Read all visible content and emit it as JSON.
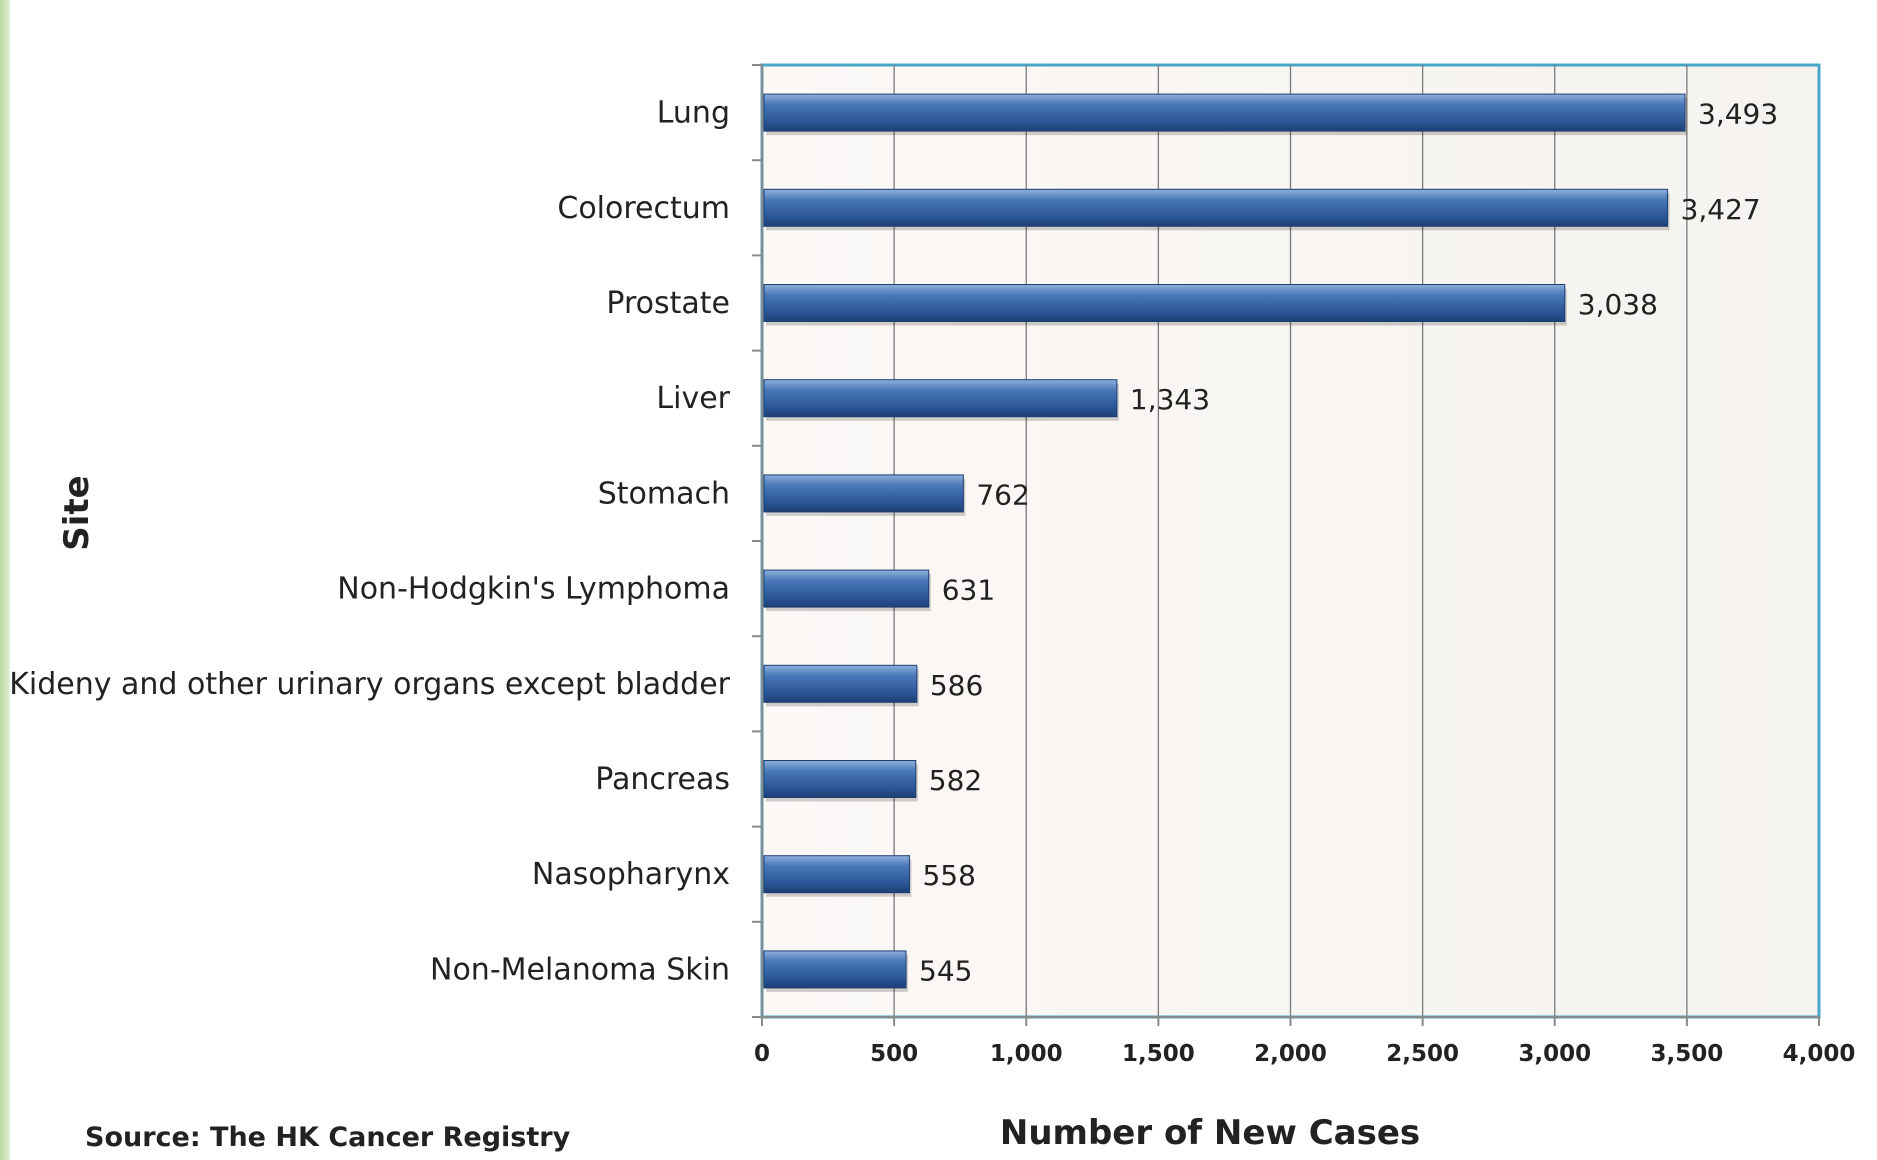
{
  "chart_data": {
    "type": "bar",
    "orientation": "horizontal",
    "categories": [
      "Lung",
      "Colorectum",
      "Prostate",
      "Liver",
      "Stomach",
      "Non-Hodgkin's Lymphoma",
      "Kideny and other urinary organs except bladder",
      "Pancreas",
      "Nasopharynx",
      "Non-Melanoma Skin"
    ],
    "values": [
      3493,
      3427,
      3038,
      1343,
      762,
      631,
      586,
      582,
      558,
      545
    ],
    "value_labels": [
      "3,493",
      "3,427",
      "3,038",
      "1,343",
      "762",
      "631",
      "586",
      "582",
      "558",
      "545"
    ],
    "xlabel": "Number of New Cases",
    "ylabel": "Site",
    "xlim": [
      0,
      4000
    ],
    "xticks": [
      0,
      500,
      1000,
      1500,
      2000,
      2500,
      3000,
      3500,
      4000
    ],
    "xtick_labels": [
      "0",
      "500",
      "1,000",
      "1,500",
      "2,000",
      "2,500",
      "3,000",
      "3,500",
      "4,000"
    ],
    "grid": "vertical",
    "bar_color": "#2f5e9e",
    "plot_border_color": "#4aa6c8",
    "source": "Source: The HK Cancer Registry"
  }
}
